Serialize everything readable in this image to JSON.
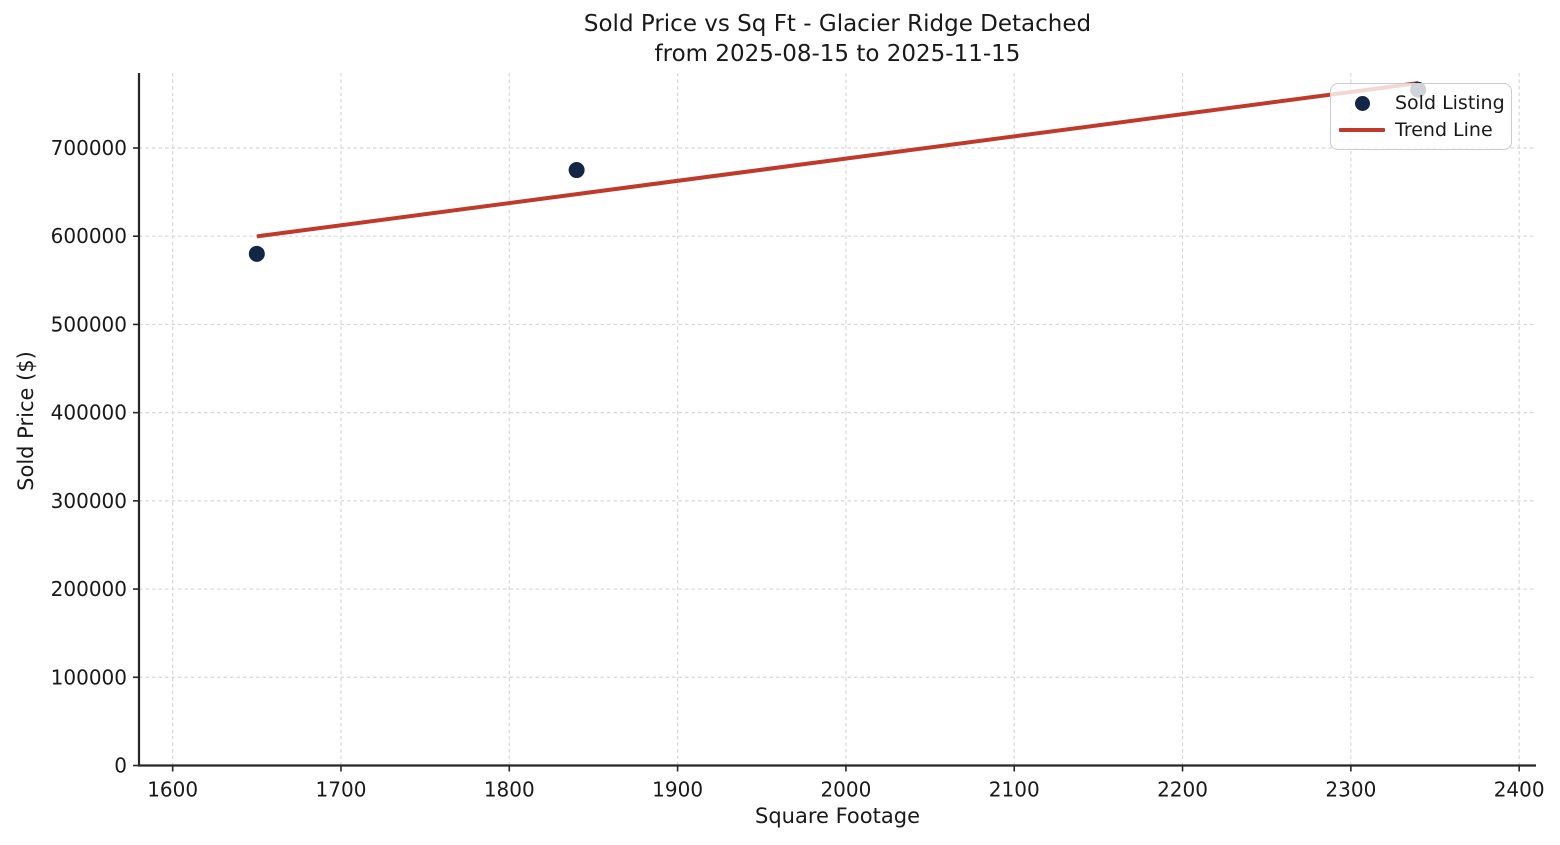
{
  "figure": {
    "background": "#ffffff"
  },
  "chart_data": {
    "type": "scatter",
    "title": "Sold Price vs Sq Ft - Glacier Ridge Detached\nfrom 2025-08-15 to 2025-11-15",
    "title_line1": "Sold Price vs Sq Ft - Glacier Ridge Detached",
    "title_line2": "from 2025-08-15 to 2025-11-15",
    "xlabel": "Square Footage",
    "ylabel": "Sold Price ($)",
    "xlim": [
      1580,
      2410
    ],
    "ylim": [
      0,
      785000
    ],
    "xticks": [
      1600,
      1700,
      1800,
      1900,
      2000,
      2100,
      2200,
      2300,
      2400
    ],
    "yticks": [
      0,
      100000,
      200000,
      300000,
      400000,
      500000,
      600000,
      700000
    ],
    "grid": {
      "visible": true,
      "style": "dashed",
      "axes": "both"
    },
    "legend": {
      "position": "upper-right",
      "items": [
        "Sold Listing",
        "Trend Line"
      ]
    },
    "series": [
      {
        "name": "Sold Listing",
        "type": "scatter",
        "color": "#132645",
        "points": [
          [
            1650,
            580000
          ],
          [
            1840,
            675000
          ],
          [
            2340,
            766000
          ]
        ]
      },
      {
        "name": "Trend Line",
        "type": "line",
        "color": "#bf3a2b",
        "points": [
          [
            1650,
            599800
          ],
          [
            2340,
            773600
          ]
        ]
      }
    ],
    "colors": {
      "grid": "#d8d8d8",
      "spine": "#262626",
      "text": "#191919",
      "legend_border": "#cccccc",
      "background": "#ffffff"
    }
  }
}
